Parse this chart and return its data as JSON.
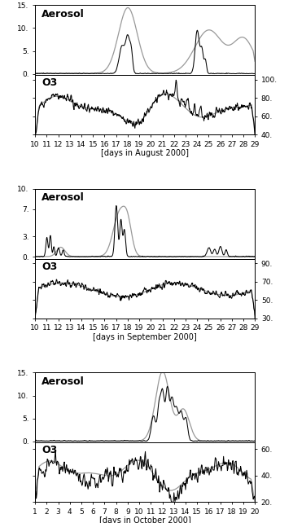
{
  "aug_x_ticks": [
    10,
    11,
    12,
    13,
    14,
    15,
    16,
    17,
    18,
    19,
    20,
    21,
    22,
    23,
    24,
    25,
    26,
    27,
    28,
    29
  ],
  "sep_x_ticks": [
    10,
    11,
    12,
    13,
    14,
    15,
    16,
    17,
    18,
    19,
    20,
    21,
    22,
    23,
    24,
    25,
    26,
    27,
    28,
    29
  ],
  "oct_x_ticks": [
    1,
    2,
    3,
    4,
    5,
    6,
    7,
    8,
    9,
    10,
    11,
    12,
    13,
    14,
    15,
    16,
    17,
    18,
    19,
    20
  ],
  "aug_xlabel": "[days in August 2000]",
  "sep_xlabel": "[days in September 2000]",
  "oct_xlabel": "[days in October 2000]",
  "aerosol_label": "Aerosol",
  "o3_label": "O3",
  "black_color": "#000000",
  "gray_color": "#999999",
  "background_color": "#ffffff",
  "aug_aerosol_ylim": [
    -0.3,
    15.0
  ],
  "aug_aerosol_yticks": [
    0.0,
    5.0,
    10.0,
    15.0
  ],
  "aug_o3_ylim": [
    40,
    105
  ],
  "aug_o3_yticks": [
    40,
    60,
    80,
    100
  ],
  "sep_aerosol_ylim": [
    -0.3,
    10.0
  ],
  "sep_aerosol_yticks": [
    0.0,
    3.0,
    7.0,
    10.0
  ],
  "sep_o3_ylim": [
    30,
    95
  ],
  "sep_o3_yticks": [
    30,
    50,
    70,
    90
  ],
  "oct_aerosol_ylim": [
    -0.3,
    15.0
  ],
  "oct_aerosol_yticks": [
    0.0,
    5.0,
    10.0,
    15.0
  ],
  "oct_o3_ylim": [
    20,
    65
  ],
  "oct_o3_yticks": [
    20,
    40,
    60
  ],
  "label_fontsize": 7,
  "tick_fontsize": 6.5,
  "aerosol_fontsize": 9,
  "o3_fontsize": 9
}
